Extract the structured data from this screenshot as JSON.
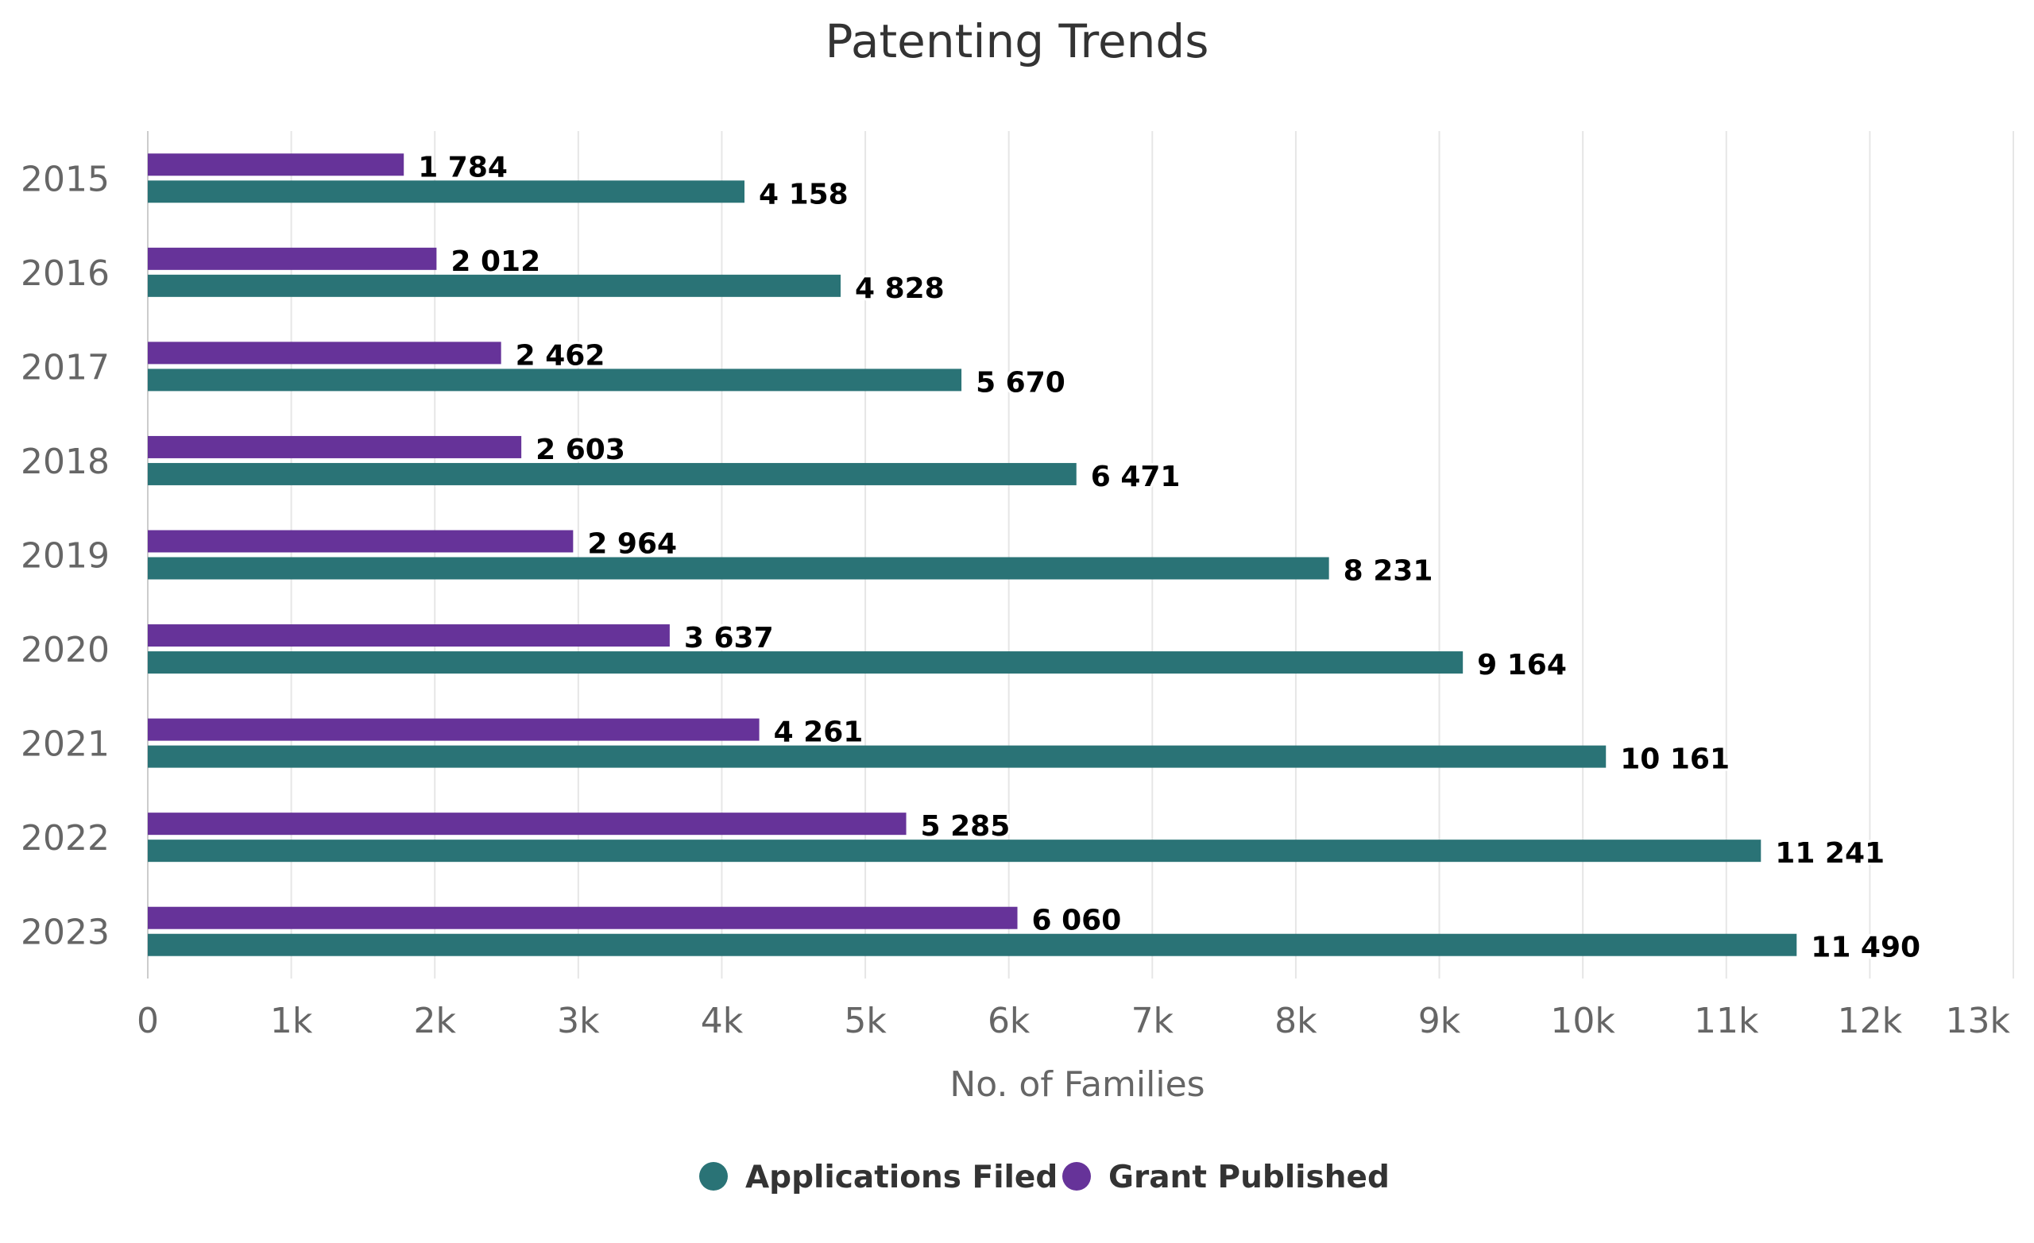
{
  "chart_data": {
    "type": "bar",
    "orientation": "horizontal",
    "title": "Patenting Trends",
    "xlabel": "No. of Families",
    "ylabel": "",
    "categories": [
      "2015",
      "2016",
      "2017",
      "2018",
      "2019",
      "2020",
      "2021",
      "2022",
      "2023"
    ],
    "xlim": [
      0,
      13000
    ],
    "x_ticks": [
      0,
      1000,
      2000,
      3000,
      4000,
      5000,
      6000,
      7000,
      8000,
      9000,
      10000,
      11000,
      12000,
      13000
    ],
    "x_tick_labels": [
      "0",
      "1k",
      "2k",
      "3k",
      "4k",
      "5k",
      "6k",
      "7k",
      "8k",
      "9k",
      "10k",
      "11k",
      "12k",
      "13k"
    ],
    "grid": true,
    "legend_position": "bottom-center",
    "series": [
      {
        "name": "Grant Published",
        "color": "#663399",
        "values": [
          1784,
          2012,
          2462,
          2603,
          2964,
          3637,
          4261,
          5285,
          6060
        ],
        "labels": [
          "1 784",
          "2 012",
          "2 462",
          "2 603",
          "2 964",
          "3 637",
          "4 261",
          "5 285",
          "6 060"
        ]
      },
      {
        "name": "Applications Filed",
        "color": "#2a7376",
        "values": [
          4158,
          4828,
          5670,
          6471,
          8231,
          9164,
          10161,
          11241,
          11490
        ],
        "labels": [
          "4 158",
          "4 828",
          "5 670",
          "6 471",
          "8 231",
          "9 164",
          "10 161",
          "11 241",
          "11 490"
        ]
      }
    ],
    "legend": [
      {
        "name": "Applications Filed",
        "color": "#2a7376"
      },
      {
        "name": "Grant Published",
        "color": "#663399"
      }
    ]
  }
}
